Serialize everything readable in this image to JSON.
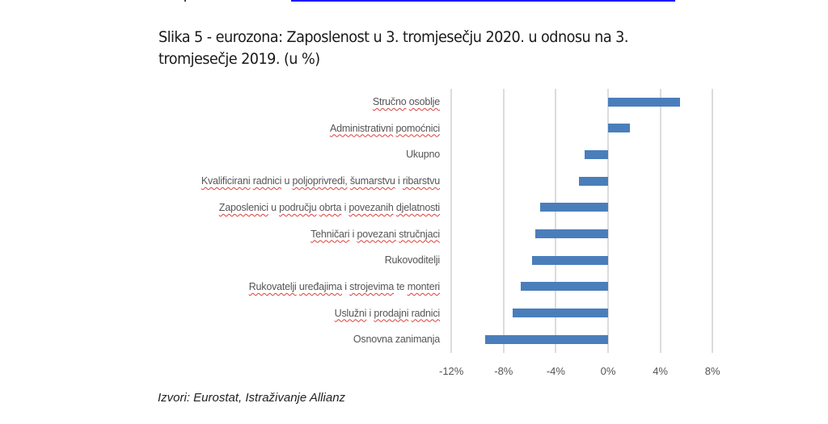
{
  "figure": {
    "title_line1": "Slika 5 - eurozona: Zaposlenost u 3. tromjesečju 2020. u odnosu na 3.",
    "title_line2": "tromjesečje 2019. (u %)",
    "source": "Izvori: Eurostat, Istraživanje Allianz"
  },
  "colors": {
    "bar": "#4a7ebb",
    "gridline": "#dcdcdc",
    "link_line": "#1a1aff",
    "spellcheck_underline": "#d9403a"
  },
  "chart_data": {
    "type": "bar",
    "orientation": "horizontal",
    "title": "Slika 5 - eurozona: Zaposlenost u 3. tromjesečju 2020. u odnosu na 3. tromjesečje 2019. (u %)",
    "xlabel": "",
    "ylabel": "",
    "categories": [
      "Stručno osoblje",
      "Administrativni pomoćnici",
      "Ukupno",
      "Kvalificirani radnici u poljoprivredi, šumarstvu i ribarstvu",
      "Zaposlenici u području obrta i povezanih djelatnosti",
      "Tehničari i povezani stručnjaci",
      "Rukovoditelji",
      "Rukovatelji uređajima i strojevima te monteri",
      "Uslužni i prodajni radnici",
      "Osnovna zanimanja"
    ],
    "values": [
      5.5,
      1.7,
      -1.8,
      -2.2,
      -5.2,
      -5.6,
      -5.8,
      -6.7,
      -7.3,
      -9.4
    ],
    "unit": "%",
    "xlim": [
      -12,
      8
    ],
    "x_ticks": [
      "-12%",
      "-8%",
      "-4%",
      "0%",
      "4%",
      "8%"
    ],
    "x_tick_values": [
      -12,
      -8,
      -4,
      0,
      4,
      8
    ],
    "grid": "vertical",
    "legend": "none",
    "source": "Izvori: Eurostat, Istraživanje Allianz"
  }
}
